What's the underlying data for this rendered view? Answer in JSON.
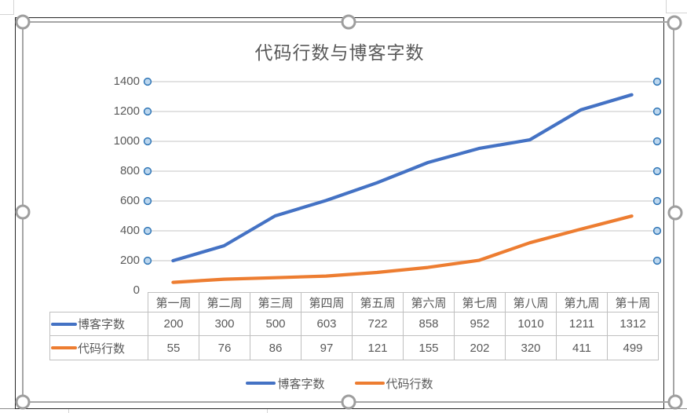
{
  "chart_data": {
    "type": "line",
    "title": "代码行数与博客字数",
    "categories": [
      "第一周",
      "第二周",
      "第三周",
      "第四周",
      "第五周",
      "第六周",
      "第七周",
      "第八周",
      "第九周",
      "第十周"
    ],
    "series": [
      {
        "name": "博客字数",
        "color": "#4472C4",
        "values": [
          200,
          300,
          500,
          603,
          722,
          858,
          952,
          1010,
          1211,
          1312
        ]
      },
      {
        "name": "代码行数",
        "color": "#ED7D31",
        "values": [
          55,
          76,
          86,
          97,
          121,
          155,
          202,
          320,
          411,
          499
        ]
      }
    ],
    "ylim": [
      0,
      1400
    ],
    "y_step": 200,
    "y_tick_labels": [
      "1400",
      "1200",
      "1000",
      "800",
      "600",
      "400",
      "200",
      "0"
    ],
    "grid": true,
    "legend_position": "bottom",
    "data_table_shown": true
  },
  "state": {
    "chart_selected": true,
    "gridlines_selected": true
  },
  "colors": {
    "series_blue": "#4472C4",
    "series_orange": "#ED7D31",
    "gridline": "#D9D9D9",
    "table_border": "#BFBFBF",
    "text_gray": "#595959",
    "selection_gray": "#A6A6A6",
    "gridline_handle_fill": "#BDD7EE",
    "gridline_handle_stroke": "#2E75B6"
  }
}
